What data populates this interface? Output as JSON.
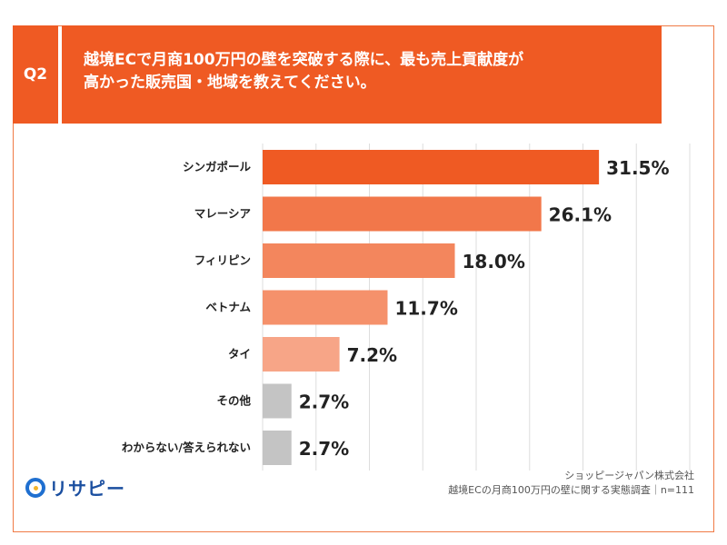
{
  "header": {
    "badge": "Q2",
    "question_line1": "越境ECで月商100万円の壁を突破する際に、最も売上貢献度が",
    "question_line2": "高かった販売国・地域を教えてください。"
  },
  "colors": {
    "accent": "#ef5a23",
    "bar_gray": "#c4c4c4"
  },
  "chart_data": {
    "type": "bar",
    "orientation": "horizontal",
    "categories": [
      "シンガポール",
      "マレーシア",
      "フィリピン",
      "ベトナム",
      "タイ",
      "その他",
      "わからない/答えられない"
    ],
    "values": [
      31.5,
      26.1,
      18.0,
      11.7,
      7.2,
      2.7,
      2.7
    ],
    "value_labels": [
      "31.5%",
      "26.1%",
      "18.0%",
      "11.7%",
      "7.2%",
      "2.7%",
      "2.7%"
    ],
    "bar_colors": [
      "#ef5a23",
      "#f2774a",
      "#f3865d",
      "#f5916b",
      "#f7a587",
      "#c4c4c4",
      "#c4c4c4"
    ],
    "xlim": [
      0,
      40
    ],
    "grid": true,
    "unit": "%"
  },
  "footer": {
    "source_line1": "ショッピージャパン株式会社",
    "source_line2": "越境ECの月商100万円の壁に関する実態調査｜n=111",
    "logo_text": "リサピー"
  }
}
